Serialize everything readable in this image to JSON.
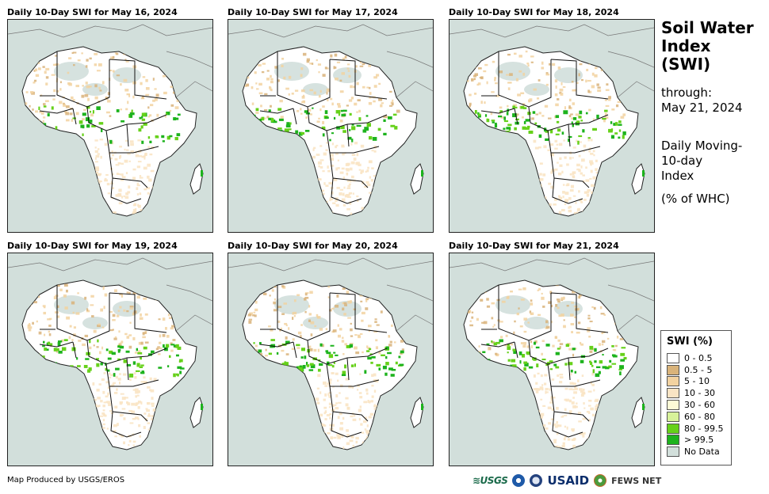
{
  "panels": [
    {
      "title": "Daily 10-Day SWI for May 16, 2024",
      "wet_level": 0.55
    },
    {
      "title": "Daily 10-Day SWI for May 17, 2024",
      "wet_level": 0.6
    },
    {
      "title": "Daily 10-Day SWI for May 18, 2024",
      "wet_level": 0.8
    },
    {
      "title": "Daily 10-Day SWI for May 19, 2024",
      "wet_level": 0.85
    },
    {
      "title": "Daily 10-Day SWI for May 20, 2024",
      "wet_level": 0.75
    },
    {
      "title": "Daily 10-Day SWI for May 21, 2024",
      "wet_level": 0.8
    }
  ],
  "side": {
    "title_line1": "Soil Water",
    "title_line2": "Index",
    "title_line3": "(SWI)",
    "through_label": "through:",
    "through_date": "May 21, 2024",
    "desc_line1": "Daily Moving-",
    "desc_line2": "10-day",
    "desc_line3": "Index",
    "units": "(% of WHC)"
  },
  "legend": {
    "title": "SWI (%)",
    "items": [
      {
        "label": "0 - 0.5",
        "color": "#ffffff"
      },
      {
        "label": "0.5 - 5",
        "color": "#d9b37a"
      },
      {
        "label": "5 - 10",
        "color": "#f2d2a0"
      },
      {
        "label": "10 - 30",
        "color": "#f9e4c4"
      },
      {
        "label": "30 - 60",
        "color": "#fdfbd6"
      },
      {
        "label": "60 - 80",
        "color": "#d7f29a"
      },
      {
        "label": "80 - 99.5",
        "color": "#66d11a"
      },
      {
        "label": "> 99.5",
        "color": "#1db31d"
      },
      {
        "label": "No Data",
        "color": "#d2dfdb"
      }
    ]
  },
  "credit": "Map Produced by USGS/EROS",
  "logos": {
    "usgs": "≋USGS",
    "usaid": "USAID",
    "fews": "FEWS NET"
  },
  "colors": {
    "ocean": "#d2dfdb",
    "desert_nodata": "#d2dfdb",
    "land": "#ffffff",
    "dry": "#f2d2a0",
    "very_dry": "#d9b37a",
    "moist": "#f9e4c4",
    "wet": "#66d11a",
    "saturated": "#1db31d"
  }
}
